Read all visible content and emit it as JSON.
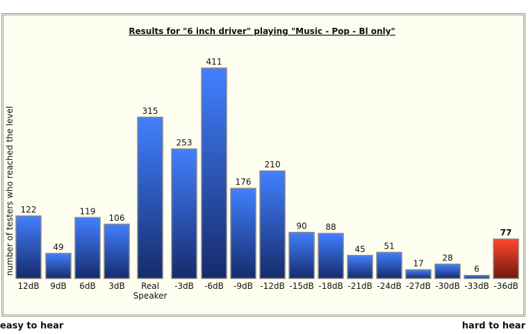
{
  "chart_data": {
    "type": "bar",
    "title": "Results for \"6 inch driver\" playing \"Music - Pop - Bl only\"",
    "y_label": "number of testers who reached the level",
    "left_note": "easy to hear",
    "right_note": "hard to hear",
    "categories": [
      "12dB",
      "9dB",
      "6dB",
      "3dB",
      "Real Speaker",
      "-3dB",
      "-6dB",
      "-9dB",
      "-12dB",
      "-15dB",
      "-18dB",
      "-21dB",
      "-24dB",
      "-27dB",
      "-30dB",
      "-33dB",
      "-36dB"
    ],
    "values": [
      122,
      49,
      119,
      106,
      315,
      253,
      411,
      176,
      210,
      90,
      88,
      45,
      51,
      17,
      28,
      6,
      77
    ],
    "colors": [
      "#2c55d6",
      "#2c55d6",
      "#2c55d6",
      "#2c55d6",
      "#2c55d6",
      "#2c55d6",
      "#2c55d6",
      "#2c55d6",
      "#2c55d6",
      "#2c55d6",
      "#2c55d6",
      "#2c55d6",
      "#2c55d6",
      "#2c55d6",
      "#2c55d6",
      "#2c55d6",
      "#e0301e"
    ],
    "ylim": [
      0,
      411
    ]
  }
}
